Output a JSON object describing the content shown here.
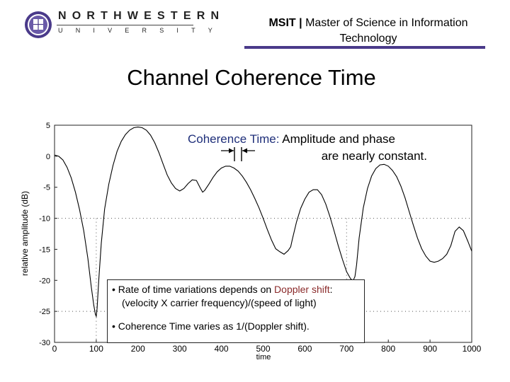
{
  "header": {
    "logo_top": "NORTHWESTERN",
    "logo_bottom": "UNIVERSITY",
    "program_abbr": "MSIT",
    "program_sep": "|",
    "program_name_line1": "Master of Science in Information",
    "program_name_line2": "Technology"
  },
  "slide": {
    "title": "Channel Coherence Time"
  },
  "coherence_note": {
    "keyword": "Coherence Time:",
    "line1_rest": "Amplitude and phase",
    "line2": "are nearly constant."
  },
  "callout": {
    "bullet1_lead": "• Rate of time variations depends on",
    "bullet1_key": "Doppler shift",
    "bullet1_end": ":",
    "bullet1_detail": "(velocity X carrier frequency)/(speed of light)",
    "bullet2": "• Coherence Time varies as 1/(Doppler shift)."
  },
  "colors": {
    "accent_bar": "#4a3a8a",
    "keyword_blue": "#1f2f7a",
    "doppler_red": "#8a2a2a"
  },
  "chart_data": {
    "type": "line",
    "xlabel": "time",
    "ylabel": "relative amplitude (dB)",
    "xlim": [
      0,
      1000
    ],
    "ylim": [
      -30,
      5
    ],
    "x_ticks": [
      0,
      100,
      200,
      300,
      400,
      500,
      600,
      700,
      800,
      900,
      1000
    ],
    "y_ticks": [
      5,
      0,
      -5,
      -10,
      -15,
      -20,
      -25,
      -30
    ],
    "grid_dotted_y": [
      -10,
      -25
    ],
    "series": [
      {
        "name": "fading envelope",
        "x": [
          0,
          10,
          20,
          30,
          40,
          50,
          60,
          70,
          80,
          88,
          94,
          98,
          100,
          102,
          106,
          112,
          120,
          130,
          140,
          150,
          160,
          170,
          180,
          190,
          200,
          210,
          220,
          230,
          240,
          250,
          260,
          270,
          280,
          290,
          300,
          310,
          320,
          330,
          340,
          350,
          355,
          360,
          370,
          380,
          390,
          400,
          410,
          420,
          430,
          440,
          450,
          460,
          470,
          480,
          490,
          500,
          510,
          520,
          530,
          540,
          550,
          560,
          566,
          570,
          580,
          590,
          600,
          610,
          620,
          630,
          640,
          650,
          660,
          670,
          680,
          690,
          700,
          710,
          716,
          720,
          724,
          730,
          740,
          750,
          760,
          770,
          780,
          790,
          800,
          810,
          820,
          830,
          840,
          850,
          860,
          870,
          880,
          890,
          900,
          910,
          920,
          930,
          940,
          950,
          960,
          970,
          980,
          990,
          1000
        ],
        "y": [
          0.2,
          0,
          -0.6,
          -1.8,
          -3.5,
          -5.8,
          -8.6,
          -12,
          -16.5,
          -21,
          -24,
          -25.5,
          -25.8,
          -24.5,
          -20,
          -14,
          -8.5,
          -4.5,
          -1.5,
          0.8,
          2.4,
          3.5,
          4.2,
          4.6,
          4.7,
          4.6,
          4.2,
          3.4,
          2.2,
          0.6,
          -1.2,
          -3,
          -4.3,
          -5.2,
          -5.6,
          -5.2,
          -4.4,
          -3.8,
          -3.9,
          -5.2,
          -5.8,
          -5.5,
          -4.5,
          -3.4,
          -2.5,
          -1.9,
          -1.6,
          -1.6,
          -1.9,
          -2.4,
          -3.2,
          -4.2,
          -5.4,
          -6.8,
          -8.3,
          -10,
          -11.8,
          -13.5,
          -14.9,
          -15.4,
          -15.8,
          -15.2,
          -14.6,
          -13.4,
          -10.6,
          -8.4,
          -6.9,
          -5.8,
          -5.4,
          -5.4,
          -6.2,
          -7.7,
          -9.7,
          -12,
          -14.4,
          -16.6,
          -18.6,
          -19.8,
          -20,
          -19.4,
          -17.5,
          -13.2,
          -8.3,
          -5.2,
          -3.2,
          -2,
          -1.4,
          -1.3,
          -1.6,
          -2.3,
          -3.3,
          -4.8,
          -6.7,
          -8.9,
          -11.1,
          -13.2,
          -14.9,
          -16.1,
          -16.9,
          -17.1,
          -16.9,
          -16.5,
          -15.8,
          -14.4,
          -12.1,
          -11.4,
          -12,
          -13.6,
          -15.3
        ]
      }
    ],
    "annotations": [
      "coherence time interval marker (arrows pointing inward)"
    ]
  }
}
